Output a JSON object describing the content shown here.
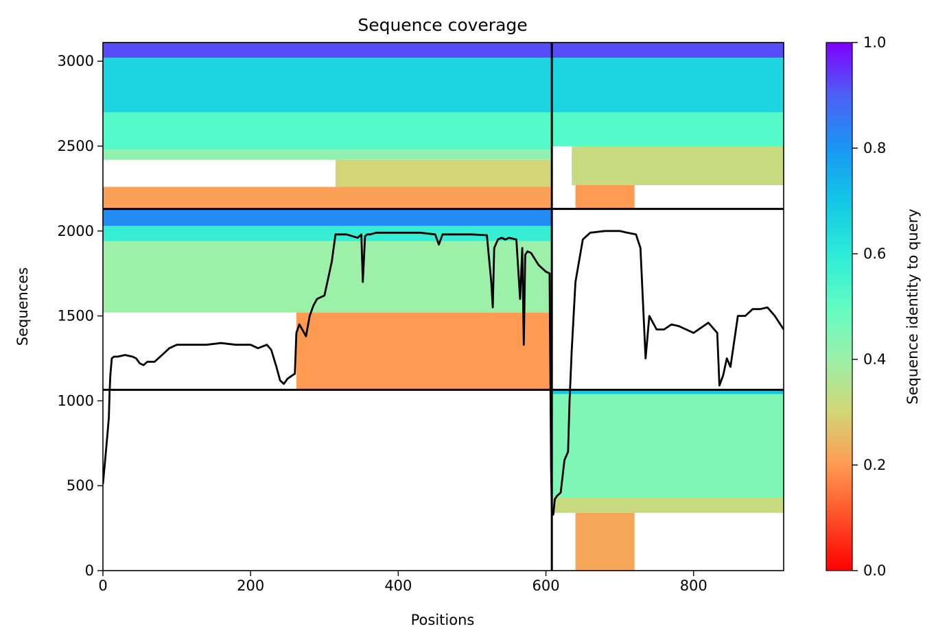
{
  "chart_data": {
    "type": "heatmap",
    "title": "Sequence coverage",
    "xlabel": "Positions",
    "ylabel": "Sequences",
    "xlim": [
      0,
      922
    ],
    "ylim": [
      0,
      3110
    ],
    "xticks": [
      0,
      200,
      400,
      600,
      800
    ],
    "yticks": [
      0,
      500,
      1000,
      1500,
      2000,
      2500,
      3000
    ],
    "colorbar": {
      "label": "Sequence identity to query",
      "colormap": "rainbow_r",
      "range": [
        0,
        1
      ],
      "ticks": [
        "0.0",
        "0.2",
        "0.4",
        "0.6",
        "0.8",
        "1.0"
      ]
    },
    "chain_boundary_x": 608,
    "chain_boundaries_y": [
      1065,
      2130
    ],
    "blocks": [
      {
        "x": [
          0,
          608
        ],
        "y": [
          2130,
          3110
        ],
        "identity_bands": [
          {
            "y": [
              3020,
              3110
            ],
            "id": 0.92
          },
          {
            "y": [
              2700,
              3020
            ],
            "id": 0.66
          },
          {
            "y": [
              2480,
              2700
            ],
            "id": 0.52
          },
          {
            "y": [
              2420,
              2480
            ],
            "id": 0.42
          },
          {
            "y": [
              2260,
              2420
            ],
            "id": 0.3,
            "x": [
              315,
              608
            ]
          },
          {
            "y": [
              2130,
              2260
            ],
            "id": 0.21,
            "x": [
              0,
              608
            ]
          }
        ]
      },
      {
        "x": [
          608,
          922
        ],
        "y": [
          2130,
          3110
        ],
        "identity_bands": [
          {
            "y": [
              3020,
              3110
            ],
            "id": 0.92
          },
          {
            "y": [
              2700,
              3020
            ],
            "id": 0.66
          },
          {
            "y": [
              2500,
              2700
            ],
            "id": 0.52
          },
          {
            "y": [
              2270,
              2500
            ],
            "id": 0.32,
            "x": [
              635,
              922
            ]
          },
          {
            "y": [
              2130,
              2270
            ],
            "id": 0.2,
            "x": [
              640,
              720
            ]
          }
        ]
      },
      {
        "x": [
          0,
          608
        ],
        "y": [
          1065,
          2130
        ],
        "identity_bands": [
          {
            "y": [
              2030,
              2130
            ],
            "id": 0.82
          },
          {
            "y": [
              1940,
              2030
            ],
            "id": 0.58
          },
          {
            "y": [
              1520,
              1940
            ],
            "id": 0.4
          },
          {
            "y": [
              1065,
              1520
            ],
            "id": 0.2,
            "x": [
              262,
              608
            ]
          }
        ]
      },
      {
        "x": [
          608,
          922
        ],
        "y": [
          0,
          1065
        ],
        "identity_bands": [
          {
            "y": [
              1040,
              1065
            ],
            "id": 0.7
          },
          {
            "y": [
              430,
              1040
            ],
            "id": 0.45
          },
          {
            "y": [
              340,
              430
            ],
            "id": 0.32
          },
          {
            "y": [
              0,
              340
            ],
            "id": 0.22,
            "x": [
              640,
              720
            ]
          }
        ]
      }
    ],
    "series": [
      {
        "x": [
          0,
          3,
          6,
          8,
          9,
          10,
          12,
          15,
          20,
          30,
          40,
          45,
          50,
          55,
          60,
          70,
          80,
          90,
          100,
          110,
          140,
          160,
          180,
          200,
          210,
          222,
          228,
          235,
          240,
          245,
          250,
          260,
          262,
          266,
          270,
          275,
          280,
          285,
          290,
          300,
          310,
          315,
          330,
          345,
          350,
          352,
          355,
          358,
          362,
          370,
          400,
          430,
          450,
          455,
          460,
          500,
          520,
          526,
          528,
          530,
          535,
          540,
          545,
          550,
          560,
          565,
          568,
          570,
          572,
          575,
          580,
          590,
          600,
          605,
          607,
          608,
          610,
          612,
          615,
          620,
          625,
          630,
          632,
          635,
          640,
          650,
          660,
          680,
          700,
          710,
          722,
          728,
          735,
          740,
          750,
          760,
          770,
          780,
          800,
          820,
          832,
          835,
          840,
          845,
          850,
          860,
          870,
          880,
          890,
          900,
          910,
          922
        ],
        "y": [
          510,
          650,
          800,
          900,
          1050,
          1150,
          1250,
          1260,
          1260,
          1270,
          1260,
          1250,
          1220,
          1210,
          1230,
          1230,
          1270,
          1310,
          1330,
          1330,
          1330,
          1340,
          1330,
          1330,
          1310,
          1330,
          1300,
          1200,
          1120,
          1100,
          1130,
          1160,
          1400,
          1450,
          1420,
          1380,
          1500,
          1560,
          1600,
          1620,
          1820,
          1980,
          1980,
          1960,
          1980,
          1700,
          1970,
          1980,
          1980,
          1990,
          1990,
          1990,
          1980,
          1920,
          1980,
          1980,
          1975,
          1700,
          1550,
          1900,
          1950,
          1960,
          1950,
          1960,
          1950,
          1600,
          1900,
          1330,
          1860,
          1880,
          1870,
          1800,
          1760,
          1750,
          600,
          350,
          330,
          420,
          440,
          460,
          650,
          700,
          1000,
          1300,
          1700,
          1950,
          1990,
          2000,
          2000,
          1990,
          1980,
          1900,
          1250,
          1500,
          1420,
          1420,
          1450,
          1440,
          1400,
          1460,
          1400,
          1090,
          1150,
          1250,
          1200,
          1500,
          1500,
          1540,
          1540,
          1550,
          1500,
          1420
        ]
      }
    ]
  }
}
